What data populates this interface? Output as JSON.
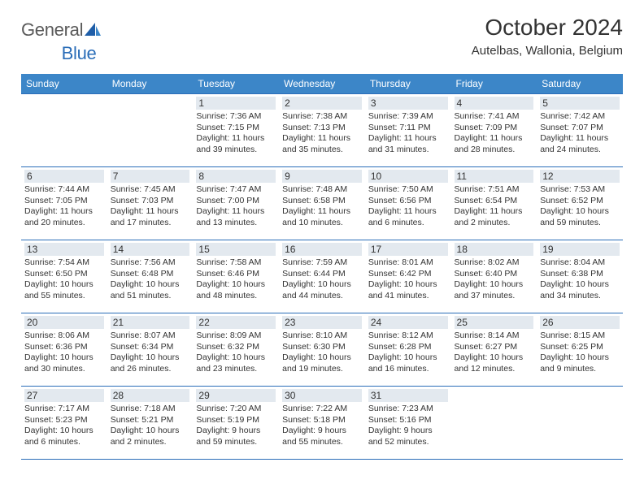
{
  "logo": {
    "word1": "General",
    "word2": "Blue"
  },
  "title": "October 2024",
  "location": "Autelbas, Wallonia, Belgium",
  "style": {
    "header_bg": "#3c86c8",
    "border_color": "#2a6db8",
    "daynum_bg": "#e3e9ef",
    "text_color": "#333333",
    "logo_blue": "#2a6db8",
    "title_fontsize": 28,
    "location_fontsize": 15,
    "weekday_fontsize": 12,
    "body_fontsize": 10.5
  },
  "weekdays": [
    "Sunday",
    "Monday",
    "Tuesday",
    "Wednesday",
    "Thursday",
    "Friday",
    "Saturday"
  ],
  "weeks": [
    [
      null,
      null,
      {
        "n": "1",
        "l1": "Sunrise: 7:36 AM",
        "l2": "Sunset: 7:15 PM",
        "l3": "Daylight: 11 hours",
        "l4": "and 39 minutes."
      },
      {
        "n": "2",
        "l1": "Sunrise: 7:38 AM",
        "l2": "Sunset: 7:13 PM",
        "l3": "Daylight: 11 hours",
        "l4": "and 35 minutes."
      },
      {
        "n": "3",
        "l1": "Sunrise: 7:39 AM",
        "l2": "Sunset: 7:11 PM",
        "l3": "Daylight: 11 hours",
        "l4": "and 31 minutes."
      },
      {
        "n": "4",
        "l1": "Sunrise: 7:41 AM",
        "l2": "Sunset: 7:09 PM",
        "l3": "Daylight: 11 hours",
        "l4": "and 28 minutes."
      },
      {
        "n": "5",
        "l1": "Sunrise: 7:42 AM",
        "l2": "Sunset: 7:07 PM",
        "l3": "Daylight: 11 hours",
        "l4": "and 24 minutes."
      }
    ],
    [
      {
        "n": "6",
        "l1": "Sunrise: 7:44 AM",
        "l2": "Sunset: 7:05 PM",
        "l3": "Daylight: 11 hours",
        "l4": "and 20 minutes."
      },
      {
        "n": "7",
        "l1": "Sunrise: 7:45 AM",
        "l2": "Sunset: 7:03 PM",
        "l3": "Daylight: 11 hours",
        "l4": "and 17 minutes."
      },
      {
        "n": "8",
        "l1": "Sunrise: 7:47 AM",
        "l2": "Sunset: 7:00 PM",
        "l3": "Daylight: 11 hours",
        "l4": "and 13 minutes."
      },
      {
        "n": "9",
        "l1": "Sunrise: 7:48 AM",
        "l2": "Sunset: 6:58 PM",
        "l3": "Daylight: 11 hours",
        "l4": "and 10 minutes."
      },
      {
        "n": "10",
        "l1": "Sunrise: 7:50 AM",
        "l2": "Sunset: 6:56 PM",
        "l3": "Daylight: 11 hours",
        "l4": "and 6 minutes."
      },
      {
        "n": "11",
        "l1": "Sunrise: 7:51 AM",
        "l2": "Sunset: 6:54 PM",
        "l3": "Daylight: 11 hours",
        "l4": "and 2 minutes."
      },
      {
        "n": "12",
        "l1": "Sunrise: 7:53 AM",
        "l2": "Sunset: 6:52 PM",
        "l3": "Daylight: 10 hours",
        "l4": "and 59 minutes."
      }
    ],
    [
      {
        "n": "13",
        "l1": "Sunrise: 7:54 AM",
        "l2": "Sunset: 6:50 PM",
        "l3": "Daylight: 10 hours",
        "l4": "and 55 minutes."
      },
      {
        "n": "14",
        "l1": "Sunrise: 7:56 AM",
        "l2": "Sunset: 6:48 PM",
        "l3": "Daylight: 10 hours",
        "l4": "and 51 minutes."
      },
      {
        "n": "15",
        "l1": "Sunrise: 7:58 AM",
        "l2": "Sunset: 6:46 PM",
        "l3": "Daylight: 10 hours",
        "l4": "and 48 minutes."
      },
      {
        "n": "16",
        "l1": "Sunrise: 7:59 AM",
        "l2": "Sunset: 6:44 PM",
        "l3": "Daylight: 10 hours",
        "l4": "and 44 minutes."
      },
      {
        "n": "17",
        "l1": "Sunrise: 8:01 AM",
        "l2": "Sunset: 6:42 PM",
        "l3": "Daylight: 10 hours",
        "l4": "and 41 minutes."
      },
      {
        "n": "18",
        "l1": "Sunrise: 8:02 AM",
        "l2": "Sunset: 6:40 PM",
        "l3": "Daylight: 10 hours",
        "l4": "and 37 minutes."
      },
      {
        "n": "19",
        "l1": "Sunrise: 8:04 AM",
        "l2": "Sunset: 6:38 PM",
        "l3": "Daylight: 10 hours",
        "l4": "and 34 minutes."
      }
    ],
    [
      {
        "n": "20",
        "l1": "Sunrise: 8:06 AM",
        "l2": "Sunset: 6:36 PM",
        "l3": "Daylight: 10 hours",
        "l4": "and 30 minutes."
      },
      {
        "n": "21",
        "l1": "Sunrise: 8:07 AM",
        "l2": "Sunset: 6:34 PM",
        "l3": "Daylight: 10 hours",
        "l4": "and 26 minutes."
      },
      {
        "n": "22",
        "l1": "Sunrise: 8:09 AM",
        "l2": "Sunset: 6:32 PM",
        "l3": "Daylight: 10 hours",
        "l4": "and 23 minutes."
      },
      {
        "n": "23",
        "l1": "Sunrise: 8:10 AM",
        "l2": "Sunset: 6:30 PM",
        "l3": "Daylight: 10 hours",
        "l4": "and 19 minutes."
      },
      {
        "n": "24",
        "l1": "Sunrise: 8:12 AM",
        "l2": "Sunset: 6:28 PM",
        "l3": "Daylight: 10 hours",
        "l4": "and 16 minutes."
      },
      {
        "n": "25",
        "l1": "Sunrise: 8:14 AM",
        "l2": "Sunset: 6:27 PM",
        "l3": "Daylight: 10 hours",
        "l4": "and 12 minutes."
      },
      {
        "n": "26",
        "l1": "Sunrise: 8:15 AM",
        "l2": "Sunset: 6:25 PM",
        "l3": "Daylight: 10 hours",
        "l4": "and 9 minutes."
      }
    ],
    [
      {
        "n": "27",
        "l1": "Sunrise: 7:17 AM",
        "l2": "Sunset: 5:23 PM",
        "l3": "Daylight: 10 hours",
        "l4": "and 6 minutes."
      },
      {
        "n": "28",
        "l1": "Sunrise: 7:18 AM",
        "l2": "Sunset: 5:21 PM",
        "l3": "Daylight: 10 hours",
        "l4": "and 2 minutes."
      },
      {
        "n": "29",
        "l1": "Sunrise: 7:20 AM",
        "l2": "Sunset: 5:19 PM",
        "l3": "Daylight: 9 hours",
        "l4": "and 59 minutes."
      },
      {
        "n": "30",
        "l1": "Sunrise: 7:22 AM",
        "l2": "Sunset: 5:18 PM",
        "l3": "Daylight: 9 hours",
        "l4": "and 55 minutes."
      },
      {
        "n": "31",
        "l1": "Sunrise: 7:23 AM",
        "l2": "Sunset: 5:16 PM",
        "l3": "Daylight: 9 hours",
        "l4": "and 52 minutes."
      },
      null,
      null
    ]
  ]
}
